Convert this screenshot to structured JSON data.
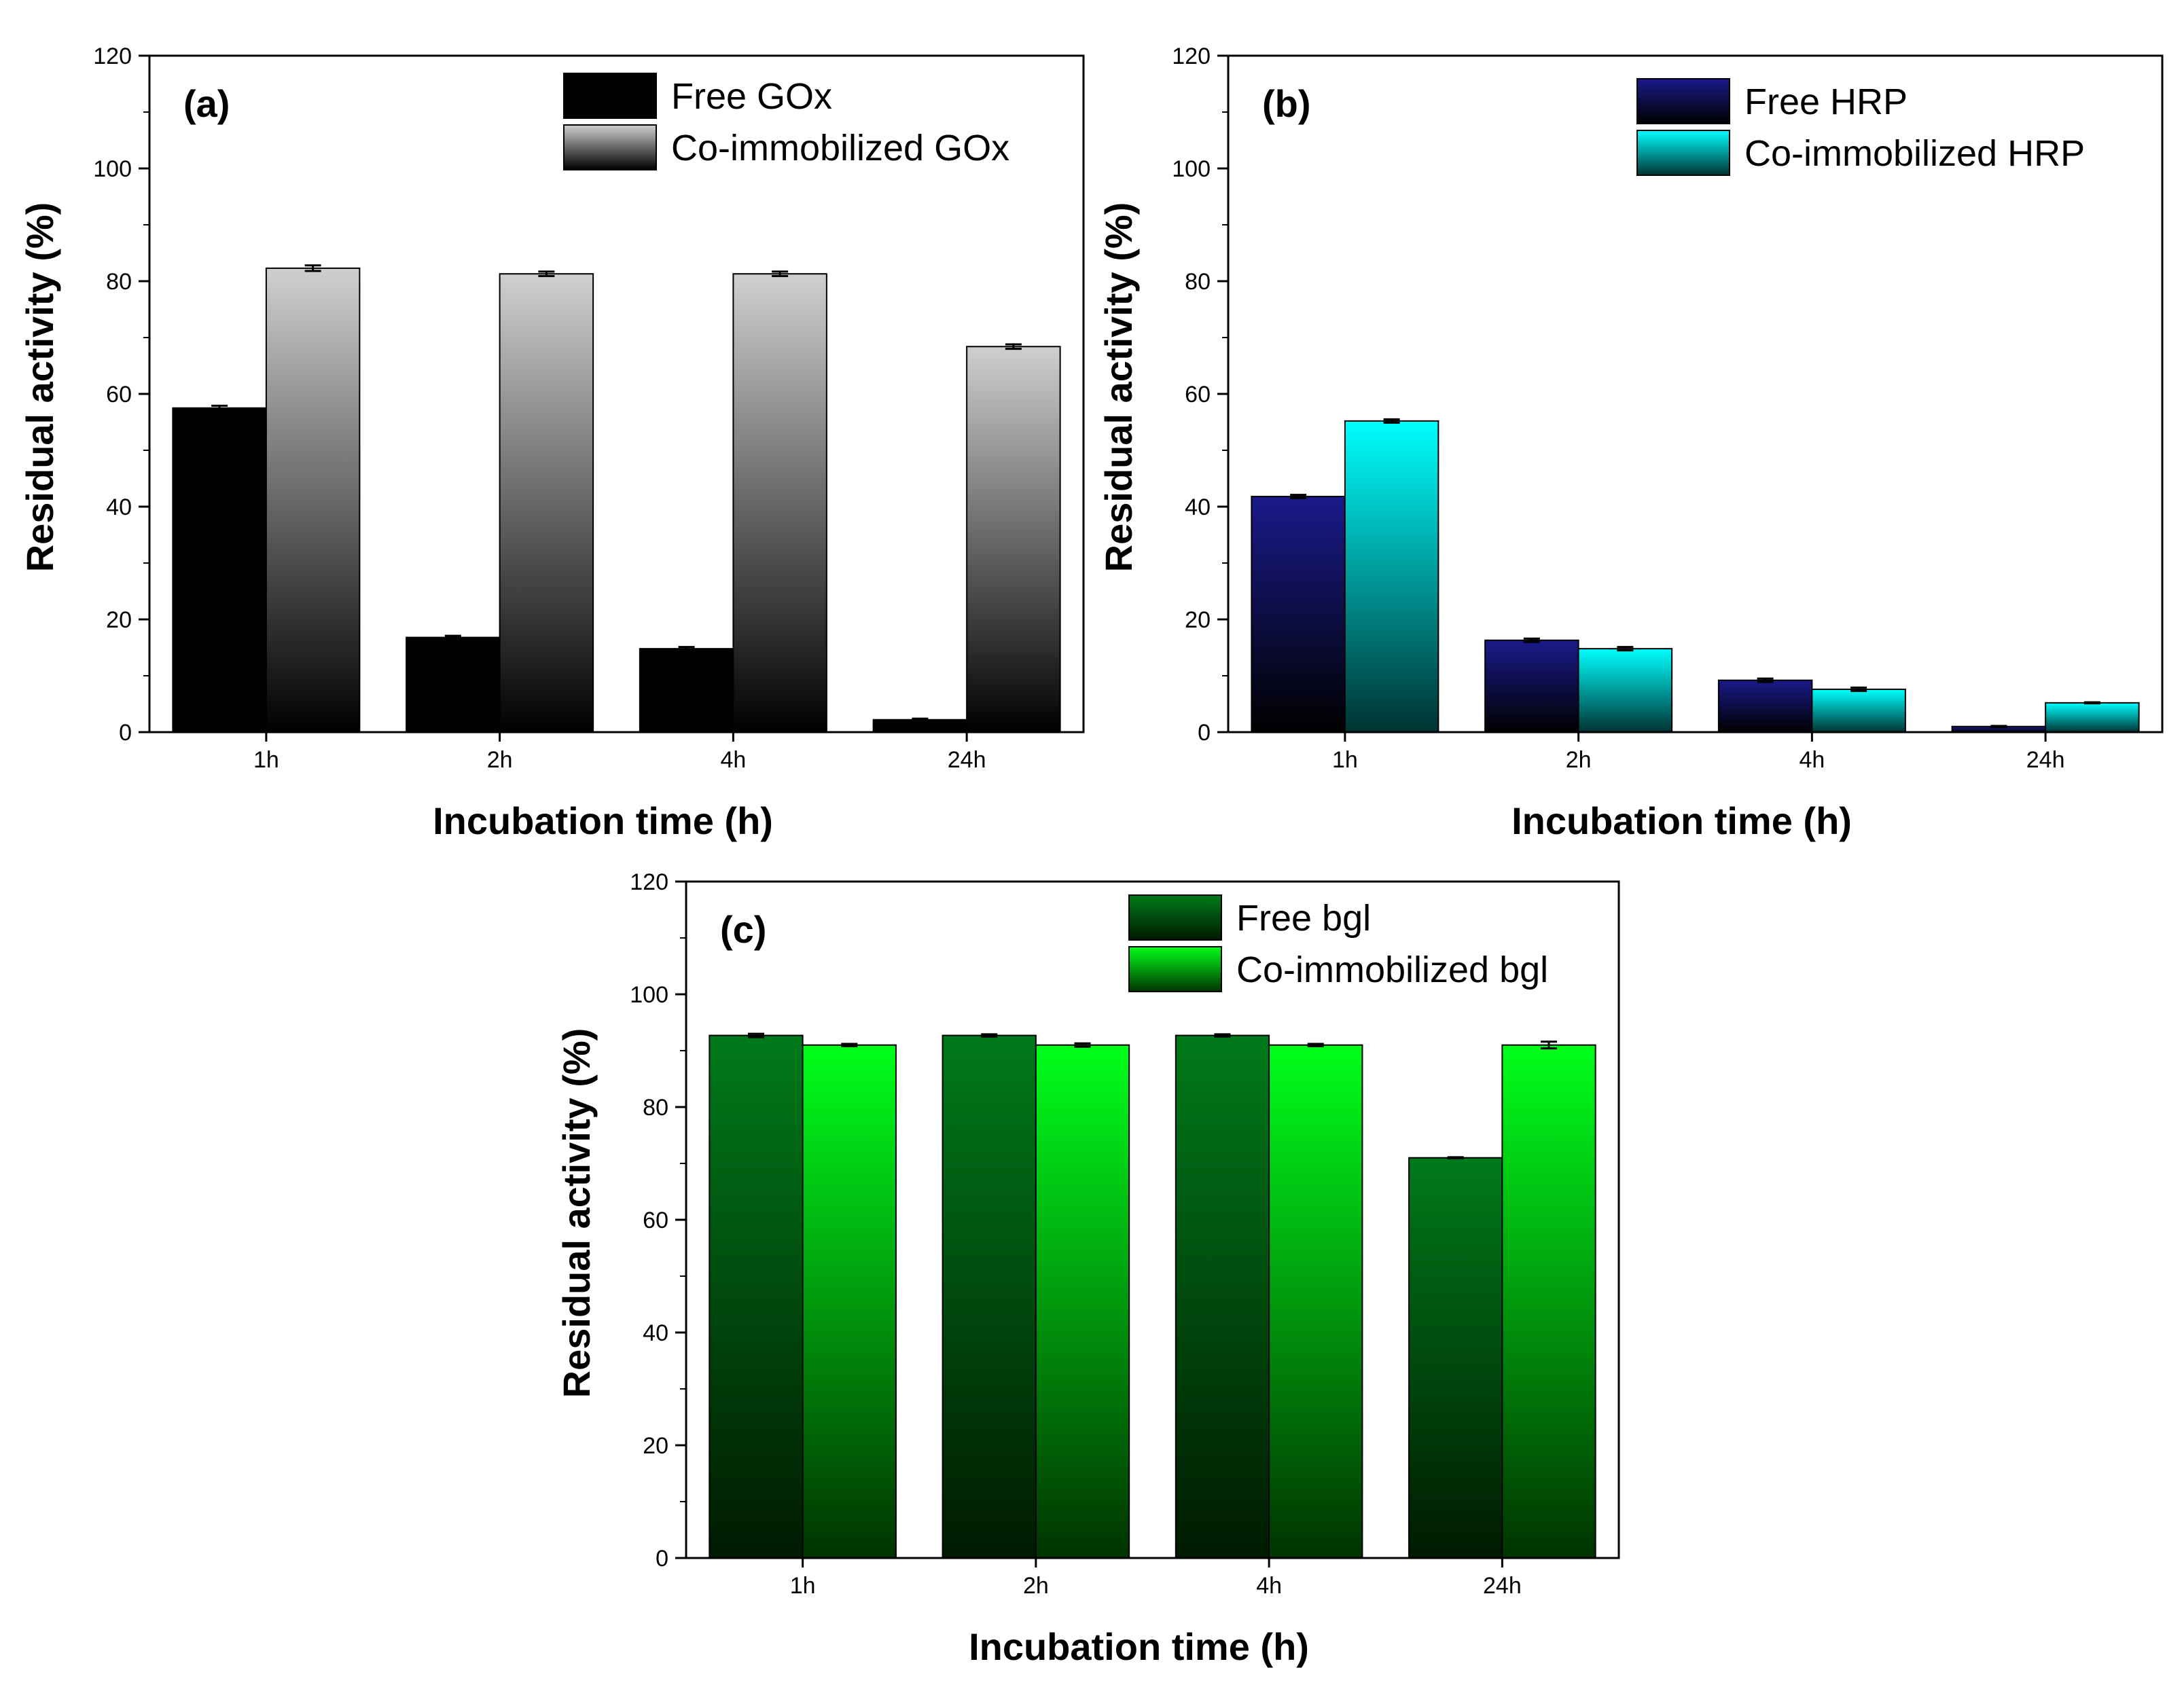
{
  "chart_data": [
    {
      "type": "bar",
      "panel_label": "(a)",
      "categories": [
        "1h",
        "2h",
        "4h",
        "24h"
      ],
      "series": [
        {
          "name": "Free GOx",
          "values": [
            57.5,
            16.8,
            14.8,
            2.2
          ],
          "errors": [
            0.4,
            0.3,
            0.3,
            0.2
          ],
          "gradient": [
            "#000000",
            "#000000"
          ]
        },
        {
          "name": "Co-immobilized GOx",
          "values": [
            82.3,
            81.3,
            81.3,
            68.4
          ],
          "errors": [
            0.5,
            0.4,
            0.4,
            0.4
          ],
          "gradient": [
            "#cfcfcf",
            "#000000"
          ]
        }
      ],
      "xlabel": "Incubation time (h)",
      "ylabel": "Residual activity (%)",
      "ylim": [
        0,
        120
      ],
      "yticks": [
        0,
        20,
        40,
        60,
        80,
        100,
        120
      ]
    },
    {
      "type": "bar",
      "panel_label": "(b)",
      "categories": [
        "1h",
        "2h",
        "4h",
        "24h"
      ],
      "series": [
        {
          "name": "Free HRP",
          "values": [
            41.8,
            16.3,
            9.2,
            1.0
          ],
          "errors": [
            0.3,
            0.3,
            0.3,
            0.1
          ],
          "gradient": [
            "#1a1a8a",
            "#000000"
          ]
        },
        {
          "name": "Co-immobilized HRP",
          "values": [
            55.2,
            14.8,
            7.6,
            5.2
          ],
          "errors": [
            0.3,
            0.3,
            0.3,
            0.1
          ],
          "gradient": [
            "#00ffff",
            "#003333"
          ]
        }
      ],
      "xlabel": "Incubation time (h)",
      "ylabel": "Residual activity (%)",
      "ylim": [
        0,
        120
      ],
      "yticks": [
        0,
        20,
        40,
        60,
        80,
        100,
        120
      ]
    },
    {
      "type": "bar",
      "panel_label": "(c)",
      "categories": [
        "1h",
        "2h",
        "4h",
        "24h"
      ],
      "series": [
        {
          "name": "Free bgl",
          "values": [
            92.7,
            92.7,
            92.7,
            71.0
          ],
          "errors": [
            0.3,
            0.2,
            0.2,
            0.1
          ],
          "gradient": [
            "#007a1a",
            "#001a00"
          ]
        },
        {
          "name": "Co-immobilized bgl",
          "values": [
            91.0,
            91.0,
            91.0,
            91.0
          ],
          "errors": [
            0.2,
            0.3,
            0.2,
            0.6
          ],
          "gradient": [
            "#00ff1a",
            "#003300"
          ]
        }
      ],
      "xlabel": "Incubation time (h)",
      "ylabel": "Residual activity (%)",
      "ylim": [
        0,
        120
      ],
      "yticks": [
        0,
        20,
        40,
        60,
        80,
        100,
        120
      ]
    }
  ]
}
